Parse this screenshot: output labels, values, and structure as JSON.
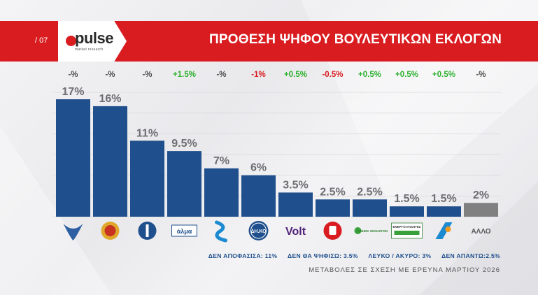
{
  "header": {
    "page_number": "/ 07",
    "logo": "pulse",
    "logo_sub": "market research",
    "title": "ΠΡΟΘΕΣΗ ΨΗΦΟΥ ΒΟΥΛΕΥΤΙΚΩΝ ΕΚΛΟΓΩΝ"
  },
  "chart_data": {
    "type": "bar",
    "categories": [
      "ΔΗΣΥ",
      "ΑΚΕΛ",
      "ΕΛΑΜ",
      "Άλμα",
      "Άμεση Δημοκρατία",
      "ΔΗΚΟ",
      "Volt",
      "ΕΔΕΚ",
      "Κίνημα Οικολόγων",
      "Ενεργοί Πολίτες",
      "Fidias",
      "ΑΛΛΟ"
    ],
    "values": [
      17,
      16,
      11,
      9.5,
      7,
      6,
      3.5,
      2.5,
      2.5,
      1.5,
      1.5,
      2
    ],
    "value_labels": [
      "17%",
      "16%",
      "11%",
      "9.5%",
      "7%",
      "6%",
      "3.5%",
      "2.5%",
      "2.5%",
      "1.5%",
      "1.5%",
      "2%"
    ],
    "changes": [
      "-%",
      "-%",
      "-%",
      "+1.5%",
      "-%",
      "-1%",
      "+0.5%",
      "-0.5%",
      "+0.5%",
      "+0.5%",
      "+0.5%",
      "-%"
    ],
    "ylim": [
      0,
      18
    ],
    "grid": true,
    "bar_color": "#1f4f8c",
    "other_color": "#808080",
    "category_labels": [
      "",
      "",
      "",
      "άλμα",
      "",
      "ΔΗ.ΚΟ",
      "Volt",
      "",
      "ΚΙΝΗΜΑ ΟΙΚΟΛΟΓΩΝ",
      "ΕΝΕΡΓΟΙ ΠΟΛΙΤΕΣ",
      "",
      "ΑΛΛΟ"
    ]
  },
  "colors": {
    "positive": "#2bb02b",
    "negative": "#d91c20",
    "neutral": "#4a4a4a"
  },
  "notes": {
    "undecided": "ΔΕΝ ΑΠΟΦΑΣΙΣΑ: 11%",
    "wont_vote": "ΔΕΝ ΘΑ ΨΗΦΙΣΩ: 3.5%",
    "blank": "ΛΕΥΚΟ / ΑΚΥΡΟ: 3%",
    "no_answer": "ΔΕΝ ΑΠΑΝΤΩ:2.5%"
  },
  "subtitle": "ΜΕΤΑΒΟΛΕΣ ΣΕ ΣΧΕΣΗ ΜΕ ΕΡΕΥΝΑ ΜΑΡΤΙΟΥ 2026"
}
